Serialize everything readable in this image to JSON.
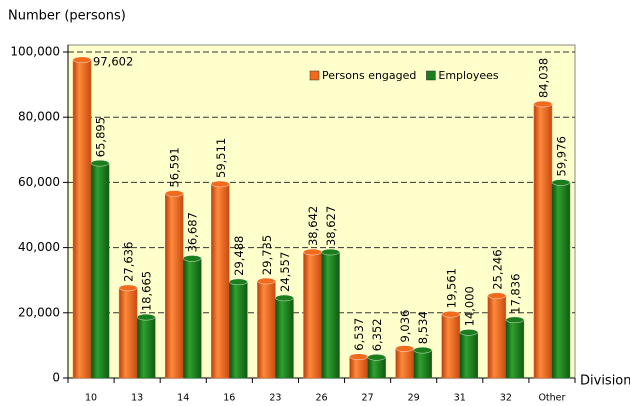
{
  "chart_data": {
    "type": "bar",
    "y_axis_label": "Number (persons)",
    "x_axis_label": "Division",
    "categories": [
      "10",
      "13",
      "14",
      "16",
      "23",
      "26",
      "27",
      "29",
      "31",
      "32",
      "Other"
    ],
    "series": [
      {
        "name": "Persons engaged",
        "color": "#f26a1b",
        "values": [
          97602,
          27636,
          56591,
          59511,
          29735,
          38642,
          6537,
          9036,
          19561,
          25246,
          84038
        ],
        "value_labels": [
          "97,602",
          "27,636",
          "56,591",
          "59,511",
          "29,735",
          "38,642",
          "6,537",
          "9,036",
          "19,561",
          "25,246",
          "84,038"
        ]
      },
      {
        "name": "Employees",
        "color": "#1b7d1b",
        "values": [
          65895,
          18665,
          36687,
          29488,
          24557,
          38627,
          6352,
          8534,
          14000,
          17836,
          59976
        ],
        "value_labels": [
          "65,895",
          "18,665",
          "36,687",
          "29,488",
          "24,557",
          "38,627",
          "6,352",
          "8,534",
          "14,000",
          "17,836",
          "59,976"
        ]
      }
    ],
    "ylim": [
      0,
      100000
    ],
    "yticks": [
      0,
      {
        "value": 20000,
        "label": "20,000"
      },
      {
        "value": 40000,
        "label": "40,000"
      },
      {
        "value": 60000,
        "label": "60,000"
      },
      {
        "value": 80000,
        "label": "80,000"
      },
      {
        "value": 100000,
        "label": "100,000"
      }
    ],
    "grid": true,
    "legend": "upper right"
  }
}
